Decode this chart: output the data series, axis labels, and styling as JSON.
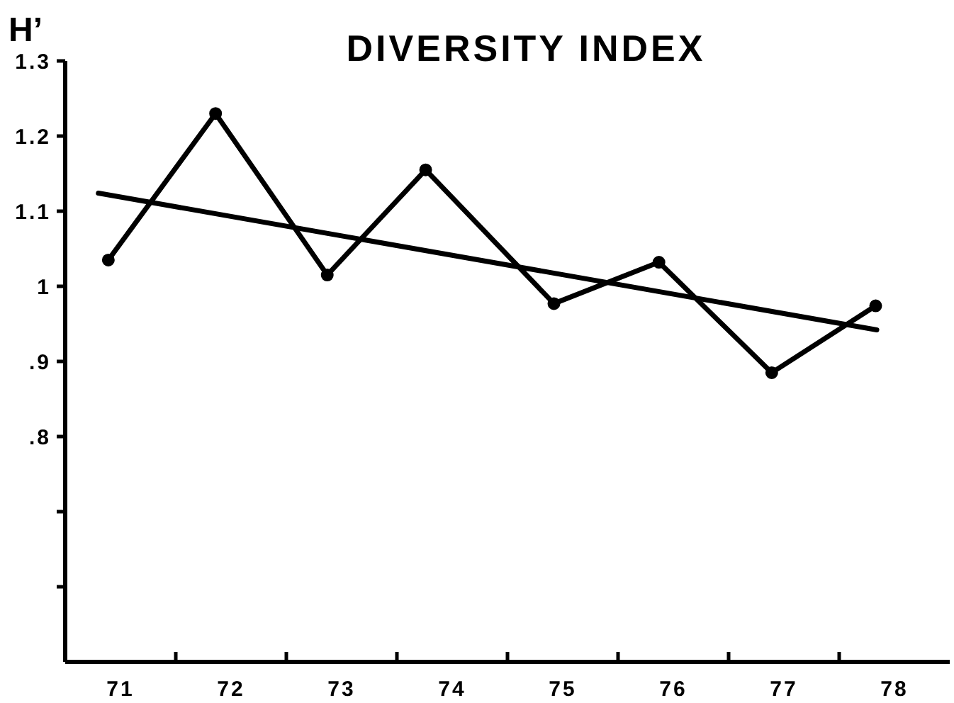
{
  "chart_data": {
    "type": "line",
    "title": "DIVERSITY INDEX",
    "ylabel": "H’",
    "xlim": [
      70.5,
      78.5
    ],
    "xticks": [
      71,
      {
        "value": 71.5,
        "label": null
      },
      72,
      {
        "value": 72.5,
        "label": null
      },
      73,
      {
        "value": 73.5,
        "label": null
      },
      74,
      {
        "value": 74.5,
        "label": null
      },
      75,
      {
        "value": 75.5,
        "label": null
      },
      76,
      {
        "value": 76.5,
        "label": null
      },
      77,
      {
        "value": 77.5,
        "label": null
      },
      78
    ],
    "ylim": [
      0.5,
      1.3
    ],
    "yticks": [
      {
        "value": 0.6,
        "label": null
      },
      {
        "value": 0.7,
        "label": null
      },
      {
        "value": 0.8,
        "label": ".8"
      },
      {
        "value": 0.9,
        "label": ".9"
      },
      1,
      1.1,
      1.2,
      1.3
    ],
    "marker": "circle",
    "series": [
      {
        "color": "#000000",
        "x": [
          70.89,
          71.86,
          72.87,
          73.76,
          74.92,
          75.87,
          76.89,
          77.83
        ],
        "values": [
          1.035,
          1.23,
          1.015,
          1.155,
          0.977,
          1.032,
          0.885,
          0.974
        ]
      },
      {
        "type": "line",
        "color": "#000000",
        "marker": "none",
        "x": [
          70.8,
          77.84
        ],
        "values": [
          1.124,
          0.942
        ]
      }
    ]
  }
}
